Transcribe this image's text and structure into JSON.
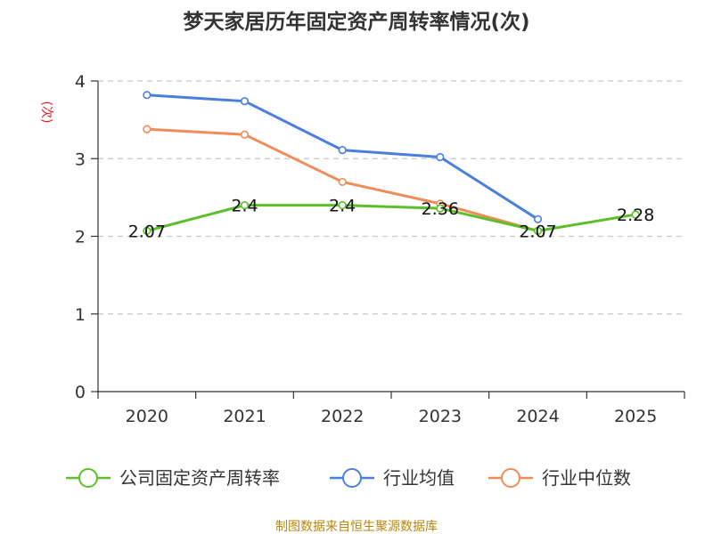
{
  "chart_data": {
    "type": "line",
    "title": "梦天家居历年固定资产周转率情况(次)",
    "ylabel": "(次)",
    "xlabel": "",
    "categories": [
      "2020",
      "2021",
      "2022",
      "2023",
      "2024",
      "2025"
    ],
    "ylim": [
      0,
      4
    ],
    "yticks": [
      "0",
      "1",
      "2",
      "3",
      "4"
    ],
    "grid": true,
    "legend_position": "bottom",
    "series": [
      {
        "name": "公司固定资产周转率",
        "color": "#5cbf2a",
        "values": [
          2.07,
          2.4,
          2.4,
          2.36,
          2.07,
          2.28
        ],
        "labels": [
          "2.07",
          "2.4",
          "2.4",
          "2.36",
          "2.07",
          "2.28"
        ]
      },
      {
        "name": "行业均值",
        "color": "#4a7fdc",
        "values": [
          3.82,
          3.74,
          3.11,
          3.02,
          2.22,
          null
        ]
      },
      {
        "name": "行业中位数",
        "color": "#f08c5a",
        "values": [
          3.38,
          3.31,
          2.7,
          2.42,
          2.07,
          null
        ]
      }
    ],
    "source": "制图数据来自恒生聚源数据库"
  }
}
